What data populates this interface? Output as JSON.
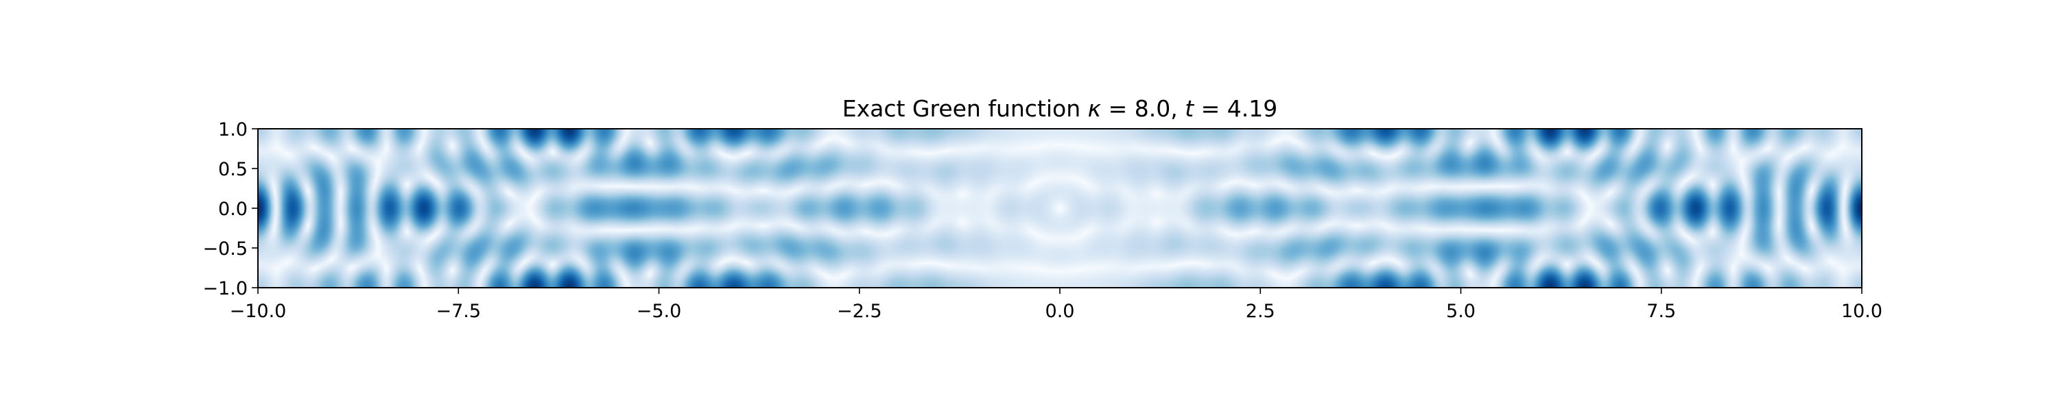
{
  "chart_data": {
    "type": "heatmap",
    "title": "Exact Green function κ = 8.0, t = 4.19",
    "title_parts": {
      "prefix": "Exact Green function ",
      "kappa_symbol": "κ",
      "kappa_value": " = 8.0, ",
      "t_symbol": "t",
      "t_value": " = 4.19"
    },
    "kappa": 8.0,
    "t": 4.19,
    "xlabel": "",
    "ylabel": "",
    "xlim": [
      -10.0,
      10.0
    ],
    "ylim": [
      -1.0,
      1.0
    ],
    "x_ticks": [
      -10.0,
      -7.5,
      -5.0,
      -2.5,
      0.0,
      2.5,
      5.0,
      7.5,
      10.0
    ],
    "x_tick_labels": [
      "−10.0",
      "−7.5",
      "−5.0",
      "−2.5",
      "0.0",
      "2.5",
      "5.0",
      "7.5",
      "10.0"
    ],
    "y_ticks": [
      1.0,
      0.5,
      0.0,
      -0.5,
      -1.0
    ],
    "y_tick_labels": [
      "1.0",
      "0.5",
      "0.0",
      "−0.5",
      "−1.0"
    ],
    "colormap": "Blues",
    "colormap_stops": [
      "#f7fbff",
      "#deebf7",
      "#c6dbef",
      "#9ecae1",
      "#6baed6",
      "#4292c6",
      "#2171b5",
      "#08519c",
      "#08306b"
    ],
    "grid": false,
    "legend": false,
    "colorbar": false
  }
}
